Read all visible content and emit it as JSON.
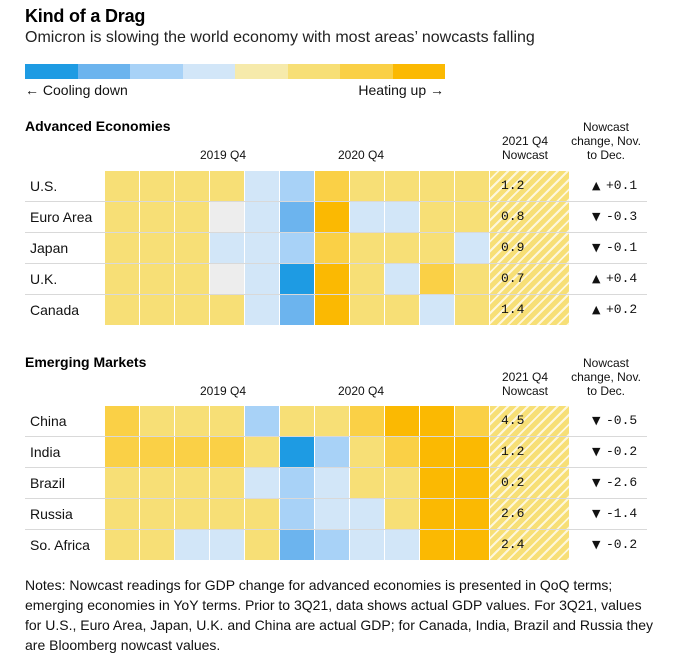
{
  "title": "Kind of a Drag",
  "subtitle": "Omicron is slowing the world economy with most areas’ nowcasts falling",
  "scale": {
    "colors": [
      "#1e9be3",
      "#6cb4ee",
      "#a8d2f7",
      "#d2e6f8",
      "#f6eaab",
      "#f7df76",
      "#fad046",
      "#fbb902"
    ],
    "left_label": "← Cooling down",
    "right_label": "Heating up →"
  },
  "headers": {
    "q2019": "2019 Q4",
    "q2020": "2020 Q4",
    "nowcast_line1": "2021 Q4",
    "nowcast_line2": "Nowcast",
    "change_line1": "Nowcast",
    "change_line2": "change, Nov.",
    "change_line3": "to Dec."
  },
  "chart_data": {
    "type": "heatmap",
    "color_key": {
      "C5": "#1e9be3",
      "C4": "#6cb4ee",
      "C3": "#a8d2f7",
      "C2": "#d2e6f8",
      "G": "#ededed",
      "Y1": "#f6eaab",
      "Y2": "#f7df76",
      "Y3": "#fad046",
      "Y4": "#fbb902"
    },
    "sections": [
      {
        "title": "Advanced Economies",
        "rows": [
          {
            "name": "U.S.",
            "cells": [
              "Y2",
              "Y2",
              "Y2",
              "Y2",
              "C2",
              "C3",
              "Y3",
              "Y2",
              "Y2",
              "Y2",
              "Y2"
            ],
            "nowcast": "1.2",
            "dir": "up",
            "change": "+0.1"
          },
          {
            "name": "Euro Area",
            "cells": [
              "Y2",
              "Y2",
              "Y2",
              "G",
              "C2",
              "C4",
              "Y4",
              "C2",
              "C2",
              "Y2",
              "Y2"
            ],
            "nowcast": "0.8",
            "dir": "down",
            "change": "-0.3"
          },
          {
            "name": "Japan",
            "cells": [
              "Y2",
              "Y2",
              "Y2",
              "C2",
              "C2",
              "C3",
              "Y3",
              "Y2",
              "Y2",
              "Y2",
              "C2"
            ],
            "nowcast": "0.9",
            "dir": "down",
            "change": "-0.1"
          },
          {
            "name": "U.K.",
            "cells": [
              "Y2",
              "Y2",
              "Y2",
              "G",
              "C2",
              "C5",
              "Y4",
              "Y2",
              "C2",
              "Y3",
              "Y2"
            ],
            "nowcast": "0.7",
            "dir": "up",
            "change": "+0.4"
          },
          {
            "name": "Canada",
            "cells": [
              "Y2",
              "Y2",
              "Y2",
              "Y2",
              "C2",
              "C4",
              "Y4",
              "Y2",
              "Y2",
              "C2",
              "Y2"
            ],
            "nowcast": "1.4",
            "dir": "up",
            "change": "+0.2"
          }
        ]
      },
      {
        "title": "Emerging Markets",
        "rows": [
          {
            "name": "China",
            "cells": [
              "Y3",
              "Y2",
              "Y2",
              "Y2",
              "C3",
              "Y2",
              "Y2",
              "Y3",
              "Y4",
              "Y4",
              "Y3"
            ],
            "nowcast": "4.5",
            "dir": "down",
            "change": "-0.5"
          },
          {
            "name": "India",
            "cells": [
              "Y3",
              "Y3",
              "Y3",
              "Y3",
              "Y2",
              "C5",
              "C3",
              "Y2",
              "Y3",
              "Y4",
              "Y4"
            ],
            "nowcast": "1.2",
            "dir": "down",
            "change": "-0.2"
          },
          {
            "name": "Brazil",
            "cells": [
              "Y2",
              "Y2",
              "Y2",
              "Y2",
              "C2",
              "C3",
              "C2",
              "Y2",
              "Y2",
              "Y4",
              "Y4"
            ],
            "nowcast": "0.2",
            "dir": "down",
            "change": "-2.6"
          },
          {
            "name": "Russia",
            "cells": [
              "Y2",
              "Y2",
              "Y2",
              "Y2",
              "Y2",
              "C3",
              "C2",
              "C2",
              "Y2",
              "Y4",
              "Y4"
            ],
            "nowcast": "2.6",
            "dir": "down",
            "change": "-1.4"
          },
          {
            "name": "So. Africa",
            "cells": [
              "Y2",
              "Y2",
              "C2",
              "C2",
              "Y2",
              "C4",
              "C3",
              "C2",
              "C2",
              "Y4",
              "Y4"
            ],
            "nowcast": "2.4",
            "dir": "down",
            "change": "-0.2"
          }
        ]
      }
    ]
  },
  "notes": "Notes: Nowcast readings for GDP change for advanced economies is presented in QoQ terms; emerging economies in YoY terms. Prior to 3Q21, data shows actual GDP values. For 3Q21, values for U.S., Euro Area, Japan, U.K. and China are actual GDP; for Canada, India, Brazil and Russia they are Bloomberg nowcast values."
}
